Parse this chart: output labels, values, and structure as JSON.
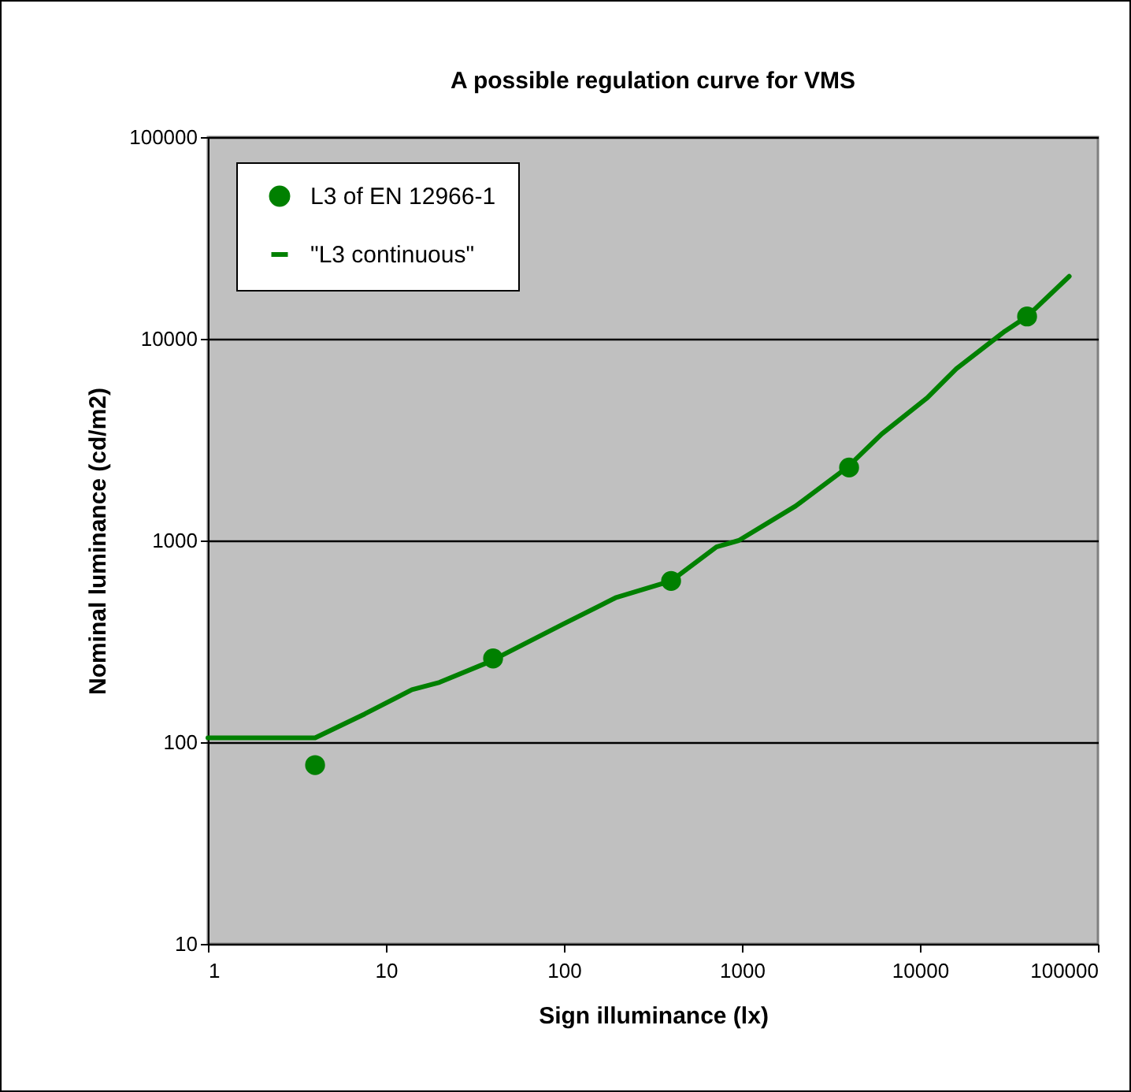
{
  "chart_data": {
    "type": "line",
    "title": "A possible regulation curve for VMS",
    "xlabel": "Sign illuminance (lx)",
    "ylabel": "Nominal luminance (cd/m2)",
    "log": "xy",
    "xlim": [
      1,
      100000
    ],
    "xticks": [
      1,
      10,
      100,
      1000,
      10000,
      100000
    ],
    "ylim": [
      10,
      100000
    ],
    "yticks": [
      10,
      100,
      1000,
      10000,
      100000
    ],
    "grid": "y",
    "legend": "top left",
    "series": [
      {
        "name": "L3 of EN 12966-1",
        "type": "scatter",
        "marker": "circle",
        "color": "#008000",
        "x": [
          4,
          40,
          400,
          4000,
          40000
        ],
        "values": [
          77,
          260,
          630,
          2300,
          12900
        ]
      },
      {
        "name": "\"L3 continuous\"",
        "marker": "none",
        "color": "#008000",
        "x": [
          1,
          4,
          7.6,
          14,
          20,
          38,
          98,
          195,
          400,
          720,
          960,
          2000,
          3900,
          6100,
          11000,
          16000,
          30000,
          40000,
          69000
        ],
        "values": [
          105,
          105,
          138,
          182,
          198,
          250,
          383,
          520,
          630,
          930,
          1000,
          1480,
          2300,
          3370,
          5100,
          7100,
          10900,
          12900,
          20400
        ]
      }
    ]
  }
}
